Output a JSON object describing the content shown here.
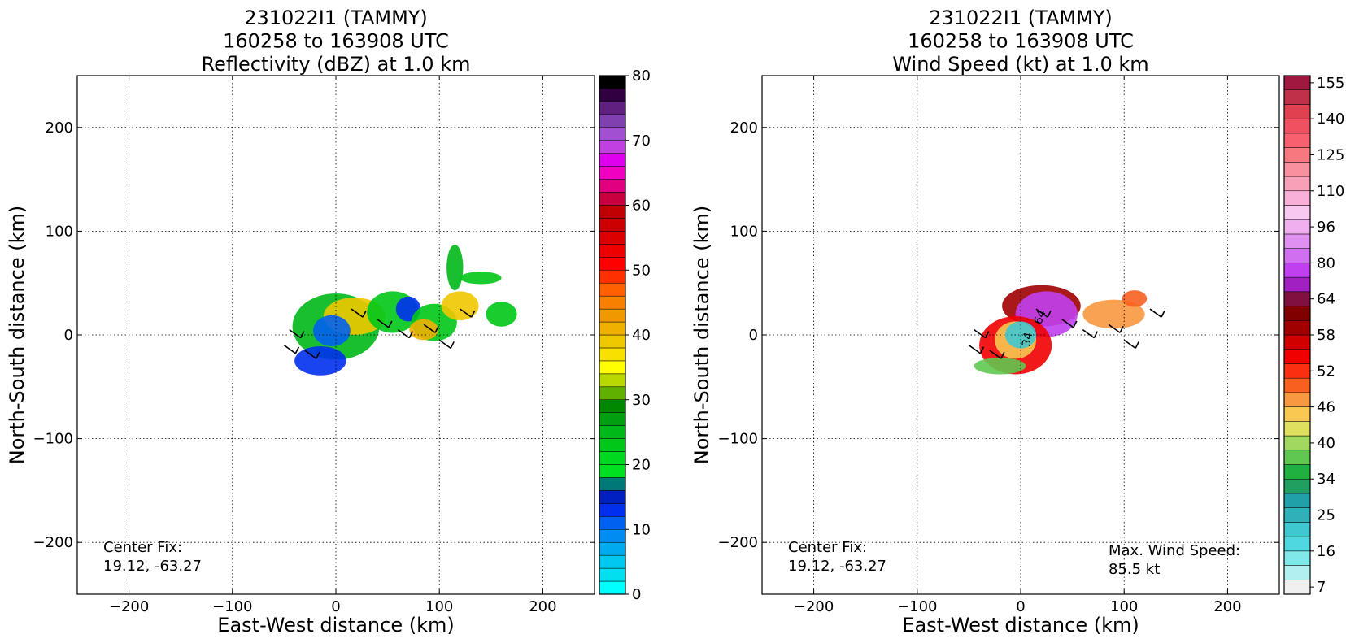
{
  "chart_data": [
    {
      "type": "heatmap",
      "title": [
        "231022I1 (TAMMY)",
        "160258 to 163908 UTC",
        "Reflectivity (dBZ) at 1.0 km"
      ],
      "xlabel": "East-West distance (km)",
      "ylabel": "North-South distance (km)",
      "xlim": [
        -250,
        250
      ],
      "ylim": [
        -250,
        250
      ],
      "xticks": [
        -200,
        -100,
        0,
        100,
        200
      ],
      "yticks": [
        -200,
        -100,
        0,
        100,
        200
      ],
      "xtick_labels": [
        "−200",
        "−100",
        "0",
        "100",
        "200"
      ],
      "ytick_labels": [
        "−200",
        "−100",
        "0",
        "100",
        "200"
      ],
      "grid": true,
      "annotations": [
        {
          "text": [
            "Center Fix:",
            "19.12, -63.27"
          ],
          "position": "bottom-left"
        }
      ],
      "colorbar": {
        "ticks": [
          "0",
          "10",
          "20",
          "30",
          "40",
          "50",
          "60",
          "70",
          "80"
        ],
        "colors": [
          "#00ffff",
          "#00e0ee",
          "#00c8f0",
          "#00aaee",
          "#008cf0",
          "#0060f0",
          "#0030ee",
          "#0020c0",
          "#007878",
          "#00e020",
          "#00d820",
          "#00c818",
          "#00b818",
          "#00a010",
          "#008800",
          "#60b000",
          "#b8d800",
          "#ffff00",
          "#f8e000",
          "#f0c800",
          "#f0b000",
          "#f09800",
          "#f88000",
          "#ff6000",
          "#ff3000",
          "#ff0000",
          "#ee0000",
          "#dd0000",
          "#cc0000",
          "#c00000",
          "#c80040",
          "#e00080",
          "#f000c0",
          "#e000f0",
          "#c040e0",
          "#a050d0",
          "#8040b0",
          "#602080",
          "#300040",
          "#000000"
        ]
      },
      "echo_regions": [
        {
          "cx": 0,
          "cy": 8,
          "rx": 42,
          "ry": 32,
          "color": "#00b818"
        },
        {
          "cx": 18,
          "cy": 18,
          "rx": 30,
          "ry": 18,
          "color": "#f0c800"
        },
        {
          "cx": -4,
          "cy": 4,
          "rx": 18,
          "ry": 15,
          "color": "#0060f0"
        },
        {
          "cx": -15,
          "cy": -25,
          "rx": 25,
          "ry": 14,
          "color": "#0030ee"
        },
        {
          "cx": 55,
          "cy": 22,
          "rx": 25,
          "ry": 20,
          "color": "#00c818"
        },
        {
          "cx": 70,
          "cy": 25,
          "rx": 12,
          "ry": 12,
          "color": "#0030ee"
        },
        {
          "cx": 95,
          "cy": 12,
          "rx": 22,
          "ry": 18,
          "color": "#00c818"
        },
        {
          "cx": 120,
          "cy": 28,
          "rx": 18,
          "ry": 14,
          "color": "#f0c800"
        },
        {
          "cx": 115,
          "cy": 65,
          "rx": 8,
          "ry": 22,
          "color": "#00b818"
        },
        {
          "cx": 140,
          "cy": 55,
          "rx": 20,
          "ry": 6,
          "color": "#00c818"
        },
        {
          "cx": 160,
          "cy": 20,
          "rx": 15,
          "ry": 12,
          "color": "#00c818"
        },
        {
          "cx": 85,
          "cy": 5,
          "rx": 14,
          "ry": 10,
          "color": "#f0b000"
        }
      ]
    },
    {
      "type": "heatmap",
      "title": [
        "231022I1 (TAMMY)",
        "160258 to 163908 UTC",
        "Wind Speed (kt) at 1.0 km"
      ],
      "xlabel": "East-West distance (km)",
      "ylabel": "North-South distance (km)",
      "xlim": [
        -250,
        250
      ],
      "ylim": [
        -250,
        250
      ],
      "xticks": [
        -200,
        -100,
        0,
        100,
        200
      ],
      "yticks": [
        -200,
        -100,
        0,
        100,
        200
      ],
      "xtick_labels": [
        "−200",
        "−100",
        "0",
        "100",
        "200"
      ],
      "ytick_labels": [
        "−200",
        "−100",
        "0",
        "100",
        "200"
      ],
      "grid": true,
      "annotations": [
        {
          "text": [
            "Center Fix:",
            "19.12, -63.27"
          ],
          "position": "bottom-left"
        },
        {
          "text": [
            "Max. Wind Speed:",
            "85.5 kt"
          ],
          "position": "bottom-right"
        }
      ],
      "contour_labels": [
        "34",
        "64"
      ],
      "colorbar": {
        "ticks": [
          "7",
          "16",
          "25",
          "34",
          "40",
          "46",
          "52",
          "58",
          "64",
          "80",
          "96",
          "110",
          "125",
          "140",
          "155"
        ],
        "colors": [
          "#f0f0f0",
          "#b0f0f0",
          "#80e8e8",
          "#50d8e0",
          "#40c8d0",
          "#30b0b8",
          "#20a0a8",
          "#20a060",
          "#20b040",
          "#60c850",
          "#a0d860",
          "#e0e060",
          "#f8c850",
          "#f89840",
          "#f86020",
          "#f83010",
          "#f00000",
          "#d00000",
          "#a00000",
          "#800000",
          "#801040",
          "#a020c0",
          "#c040f0",
          "#d070f0",
          "#e090f0",
          "#f0b0f0",
          "#f8c8f0",
          "#f8b0d8",
          "#f8a0b8",
          "#f890a0",
          "#f87880",
          "#f86070",
          "#f05060",
          "#e04050",
          "#c03048",
          "#a01840"
        ]
      },
      "echo_regions": [
        {
          "cx": 20,
          "cy": 28,
          "rx": 38,
          "ry": 20,
          "color": "#a00000"
        },
        {
          "cx": 25,
          "cy": 20,
          "rx": 30,
          "ry": 22,
          "color": "#c040f0"
        },
        {
          "cx": -5,
          "cy": -10,
          "rx": 35,
          "ry": 28,
          "color": "#f00000"
        },
        {
          "cx": -5,
          "cy": -5,
          "rx": 20,
          "ry": 18,
          "color": "#f8c850"
        },
        {
          "cx": 0,
          "cy": 0,
          "rx": 15,
          "ry": 13,
          "color": "#40c8d0"
        },
        {
          "cx": -20,
          "cy": -30,
          "rx": 25,
          "ry": 8,
          "color": "#60c850"
        },
        {
          "cx": 90,
          "cy": 20,
          "rx": 30,
          "ry": 14,
          "color": "#f89840"
        },
        {
          "cx": 110,
          "cy": 35,
          "rx": 12,
          "ry": 8,
          "color": "#f86020"
        }
      ]
    }
  ]
}
